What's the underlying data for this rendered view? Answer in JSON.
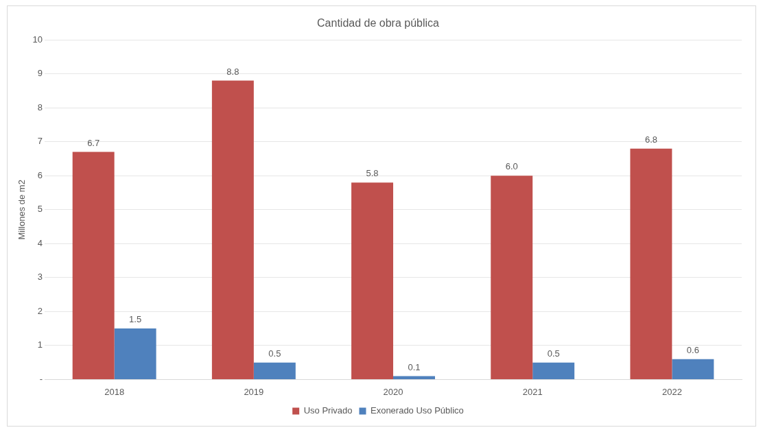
{
  "chart_data": {
    "type": "bar",
    "title": "Cantidad de obra pública",
    "ylabel": "Millones de m2",
    "categories": [
      "2018",
      "2019",
      "2020",
      "2021",
      "2022"
    ],
    "series": [
      {
        "name": "Uso Privado",
        "color": "#c0504d",
        "values": [
          6.7,
          8.8,
          5.8,
          6.0,
          6.8
        ],
        "value_labels": [
          "6.7",
          "8.8",
          "5.8",
          "6.0",
          "6.8"
        ]
      },
      {
        "name": "Exonerado Uso Público",
        "color": "#4f81bd",
        "values": [
          1.5,
          0.5,
          0.1,
          0.5,
          0.6
        ],
        "value_labels": [
          "1.5",
          "0.5",
          "0.1",
          "0.5",
          "0.6"
        ]
      }
    ],
    "ylim": [
      0,
      10
    ],
    "yticks": [
      {
        "value": 0,
        "label": "-"
      },
      1,
      2,
      3,
      4,
      5,
      6,
      7,
      8,
      9,
      10
    ],
    "grid": "y",
    "legend": "bottom"
  }
}
